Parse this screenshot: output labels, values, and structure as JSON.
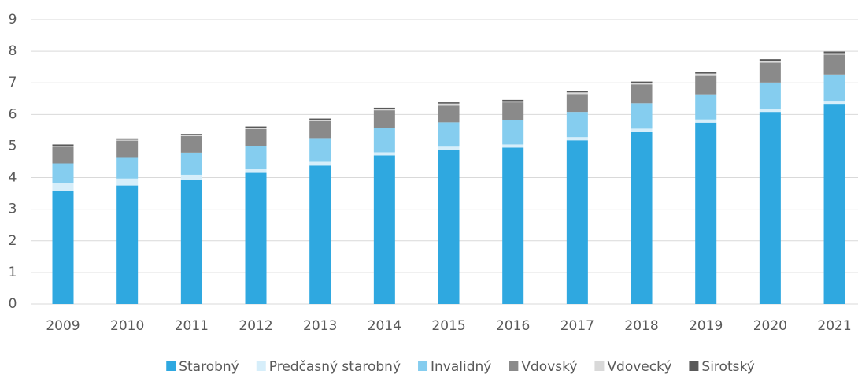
{
  "chart_data": {
    "type": "stacked_bar",
    "categories": [
      "2009",
      "2010",
      "2011",
      "2012",
      "2013",
      "2014",
      "2015",
      "2016",
      "2017",
      "2018",
      "2019",
      "2020",
      "2021"
    ],
    "series": [
      {
        "name": "Starobný",
        "color": "#2fa8e0",
        "values": [
          3.58,
          3.75,
          3.92,
          4.15,
          4.38,
          4.7,
          4.88,
          4.95,
          5.18,
          5.45,
          5.74,
          6.08,
          6.33
        ]
      },
      {
        "name": "Predčasný starobný",
        "color": "#d6eefa",
        "values": [
          0.25,
          0.22,
          0.17,
          0.13,
          0.12,
          0.1,
          0.1,
          0.1,
          0.1,
          0.1,
          0.1,
          0.1,
          0.1
        ]
      },
      {
        "name": "Invalidný",
        "color": "#85cdef",
        "values": [
          0.62,
          0.68,
          0.7,
          0.73,
          0.75,
          0.77,
          0.77,
          0.78,
          0.8,
          0.8,
          0.8,
          0.83,
          0.83
        ]
      },
      {
        "name": "Vdovský",
        "color": "#8a8a8a",
        "values": [
          0.53,
          0.52,
          0.52,
          0.53,
          0.54,
          0.56,
          0.55,
          0.55,
          0.57,
          0.6,
          0.6,
          0.63,
          0.63
        ]
      },
      {
        "name": "Vdovecký",
        "color": "#d9d9d9",
        "values": [
          0.03,
          0.03,
          0.03,
          0.04,
          0.04,
          0.04,
          0.04,
          0.04,
          0.05,
          0.05,
          0.05,
          0.06,
          0.05
        ]
      },
      {
        "name": "Sirotský",
        "color": "#595959",
        "values": [
          0.04,
          0.04,
          0.04,
          0.04,
          0.04,
          0.04,
          0.04,
          0.04,
          0.04,
          0.04,
          0.04,
          0.05,
          0.05
        ]
      }
    ],
    "ylim": [
      0,
      9
    ],
    "yticks": [
      0,
      1,
      2,
      3,
      4,
      5,
      6,
      7,
      8,
      9
    ],
    "grid": true,
    "legend": "bottom"
  }
}
